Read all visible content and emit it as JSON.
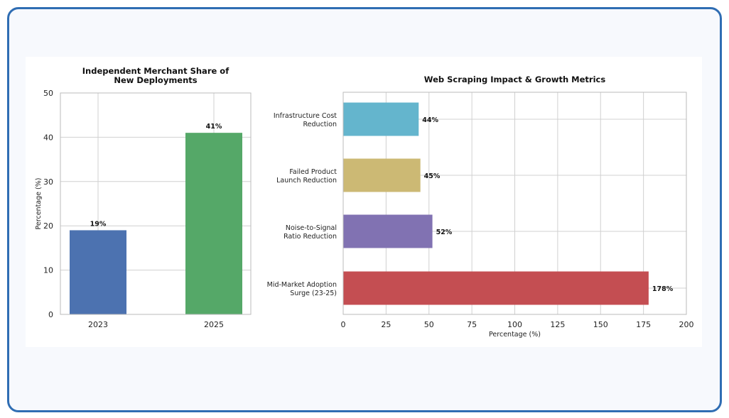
{
  "chart_data": [
    {
      "type": "bar",
      "title": "Independent Merchant Share of\nNew Deployments",
      "categories": [
        "2023",
        "2025"
      ],
      "values": [
        19,
        41
      ],
      "value_labels": [
        "19%",
        "41%"
      ],
      "ylabel": "Percentage (%)",
      "xlabel": "",
      "ylim": [
        0,
        50
      ],
      "yticks": [
        0,
        10,
        20,
        30,
        40,
        50
      ],
      "colors": [
        "#4c72b0",
        "#55a868"
      ],
      "grid": true
    },
    {
      "type": "bar",
      "orientation": "horizontal",
      "title": "Web Scraping Impact & Growth Metrics",
      "categories": [
        "Infrastructure Cost\nReduction",
        "Failed Product\nLaunch Reduction",
        "Noise-to-Signal\nRatio Reduction",
        "Mid-Market Adoption\nSurge (23-25)"
      ],
      "values": [
        44,
        45,
        52,
        178
      ],
      "value_labels": [
        "44%",
        "45%",
        "52%",
        "178%"
      ],
      "xlabel": "Percentage (%)",
      "ylabel": "",
      "xlim": [
        0,
        200
      ],
      "xticks": [
        0,
        25,
        50,
        75,
        100,
        125,
        150,
        175,
        200
      ],
      "colors": [
        "#64b5cd",
        "#ccb974",
        "#8172b2",
        "#c44e52"
      ],
      "grid": true
    }
  ]
}
